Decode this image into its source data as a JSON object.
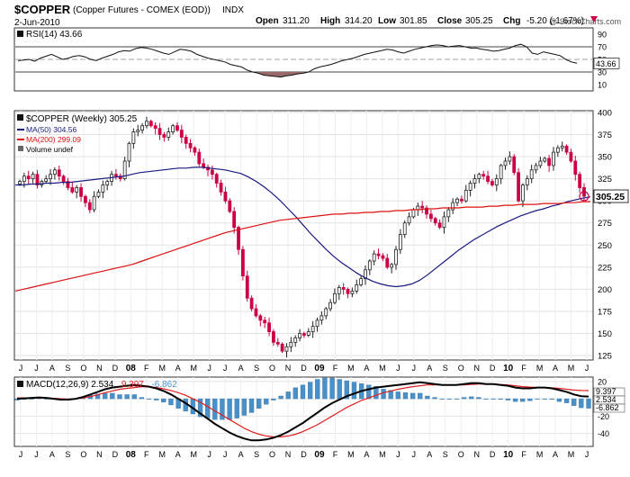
{
  "header": {
    "symbol": "$COPPER",
    "description": "(Copper Futures - COMEX (EOD))",
    "exchange": "INDX",
    "date": "2-Jun-2010",
    "copyright": "@ StockCharts.com",
    "open_label": "Open",
    "open": "311.20",
    "high_label": "High",
    "high": "314.20",
    "low_label": "Low",
    "low": "301.85",
    "close_label": "Close",
    "close": "305.25",
    "chg_label": "Chg",
    "chg": "-5.20 (-1.67%)",
    "chg_icon": "down-triangle-icon"
  },
  "colors": {
    "price_up": "#222222",
    "price_down": "#cc0044",
    "ma50": "#1a1a80",
    "ma200": "#dd1111",
    "macd_line": "#000000",
    "macd_signal": "#e02020",
    "histogram": "#4a90c8",
    "rsi_line": "#111111",
    "rsi_oversold_fill": "#9a6a6a",
    "close_marker": "#cc0044"
  },
  "chart_data": [
    {
      "type": "line",
      "panel": "rsi",
      "legend": "RSI(14) 43.66",
      "last_value": "43.66",
      "ylim": [
        0,
        100
      ],
      "ticks": [
        "90",
        "70",
        "50",
        "30",
        "10"
      ],
      "reference_lines": [
        70,
        30
      ],
      "values": [
        48,
        49,
        50,
        47,
        52,
        55,
        58,
        54,
        50,
        52,
        55,
        56,
        54,
        50,
        48,
        52,
        55,
        58,
        62,
        64,
        63,
        67,
        69,
        68,
        66,
        63,
        60,
        58,
        62,
        66,
        65,
        63,
        58,
        55,
        52,
        50,
        48,
        46,
        42,
        40,
        38,
        33,
        30,
        28,
        25,
        24,
        23,
        22,
        24,
        25,
        27,
        28,
        30,
        35,
        38,
        40,
        42,
        45,
        48,
        50,
        52,
        55,
        58,
        60,
        62,
        64,
        66,
        65,
        62,
        60,
        63,
        66,
        68,
        70,
        72,
        73,
        72,
        70,
        71,
        72,
        70,
        68,
        68,
        66,
        65,
        63,
        64,
        66,
        68,
        72,
        74,
        70,
        60,
        58,
        62,
        60,
        58,
        56,
        50,
        46,
        44
      ]
    },
    {
      "type": "candlestick",
      "panel": "price",
      "legend": "$COPPER (Weekly) 305.25",
      "x_labels": [
        "J",
        "J",
        "A",
        "S",
        "O",
        "N",
        "D",
        "08",
        "F",
        "M",
        "A",
        "M",
        "J",
        "J",
        "A",
        "S",
        "O",
        "N",
        "D",
        "09",
        "F",
        "M",
        "A",
        "M",
        "J",
        "J",
        "A",
        "S",
        "O",
        "N",
        "D",
        "10",
        "F",
        "M",
        "A",
        "M",
        "J"
      ],
      "ticks": [
        "400",
        "375",
        "350",
        "325",
        "300",
        "275",
        "250",
        "225",
        "200",
        "175",
        "150",
        "125"
      ],
      "ylim": [
        120,
        402
      ],
      "last_close": "305.25",
      "series": [
        {
          "name": "MA(50) 304.56",
          "values": [
            318,
            318,
            319,
            319,
            320,
            320,
            321,
            321,
            322,
            323,
            324,
            325,
            326,
            327,
            328,
            330,
            332,
            333,
            334,
            335,
            336,
            337,
            337,
            338,
            338,
            337,
            336,
            335,
            333,
            331,
            327,
            322,
            316,
            309,
            301,
            292,
            283,
            273,
            263,
            254,
            245,
            237,
            230,
            224,
            218,
            213,
            209,
            206,
            204,
            203,
            204,
            206,
            210,
            216,
            223,
            230,
            237,
            244,
            250,
            256,
            261,
            266,
            271,
            275,
            279,
            283,
            286,
            289,
            291,
            294,
            296,
            299,
            301,
            303,
            304.56
          ]
        },
        {
          "name": "MA(200) 299.09",
          "values": [
            198,
            200,
            202,
            204,
            206,
            208,
            210,
            212,
            214,
            216,
            218,
            220,
            222,
            224,
            226,
            228,
            231,
            234,
            237,
            240,
            243,
            246,
            249,
            252,
            255,
            258,
            261,
            264,
            266,
            268,
            270,
            272,
            274,
            276,
            278,
            279,
            280,
            281,
            282,
            283,
            284,
            285,
            285,
            286,
            286,
            287,
            287,
            288,
            288,
            289,
            289,
            290,
            290,
            291,
            291,
            292,
            292,
            292,
            293,
            293,
            293,
            294,
            294,
            295,
            295,
            296,
            296,
            296,
            297,
            297,
            297,
            298,
            298,
            299,
            299.09
          ]
        },
        {
          "name": "Volume undef",
          "values": []
        }
      ],
      "closes": [
        322,
        328,
        325,
        330,
        318,
        322,
        325,
        330,
        335,
        328,
        322,
        315,
        310,
        315,
        305,
        298,
        290,
        305,
        310,
        318,
        322,
        330,
        328,
        325,
        345,
        365,
        378,
        380,
        385,
        390,
        385,
        382,
        375,
        372,
        378,
        385,
        380,
        372,
        365,
        360,
        355,
        342,
        338,
        335,
        330,
        320,
        310,
        300,
        288,
        270,
        245,
        215,
        190,
        178,
        170,
        165,
        162,
        152,
        140,
        138,
        130,
        135,
        140,
        145,
        150,
        148,
        152,
        158,
        165,
        170,
        178,
        185,
        195,
        202,
        200,
        195,
        198,
        205,
        212,
        222,
        232,
        240,
        238,
        235,
        225,
        228,
        245,
        262,
        275,
        282,
        290,
        294,
        292,
        285,
        280,
        275,
        270,
        282,
        290,
        298,
        302,
        300,
        312,
        320,
        325,
        330,
        328,
        322,
        318,
        325,
        340,
        345,
        350,
        332,
        300,
        318,
        325,
        335,
        340,
        345,
        348,
        340,
        355,
        360,
        362,
        355,
        345,
        330,
        315,
        305.25
      ]
    },
    {
      "type": "line",
      "panel": "macd",
      "legend": "MACD(12,26,9) 2.534, 9.397, -6.862",
      "legend_macd": "MACD(12,26,9) 2.534,",
      "legend_signal": "9.397,",
      "legend_hist": "-6.862",
      "ticks": [
        "20",
        "0",
        "-20",
        "-40"
      ],
      "ylim": [
        -55,
        25
      ],
      "last_labels": [
        "9.397",
        "2.534",
        "-6.862"
      ],
      "series": [
        {
          "name": "MACD",
          "values": [
            0,
            0.5,
            1,
            1.5,
            1,
            0,
            -1,
            -1,
            0,
            2,
            5,
            8,
            11,
            13,
            14,
            15,
            16,
            15,
            14,
            12,
            9,
            5,
            0,
            -5,
            -11,
            -17,
            -23,
            -29,
            -34,
            -39,
            -43,
            -46,
            -48,
            -48,
            -47,
            -45,
            -42,
            -38,
            -33,
            -28,
            -22,
            -16,
            -10,
            -5,
            -1,
            3,
            6,
            9,
            11,
            13,
            14,
            15,
            16,
            17,
            18,
            19,
            18,
            17,
            16,
            16,
            16,
            17,
            18,
            18,
            17,
            17,
            16,
            15,
            13,
            12,
            12,
            13,
            13,
            12,
            10,
            8,
            5,
            3,
            2.534
          ]
        },
        {
          "name": "Signal",
          "values": [
            1,
            1,
            1,
            1,
            1,
            0.5,
            0,
            -0.5,
            0,
            1,
            2.5,
            4.5,
            7,
            9,
            11,
            12,
            13,
            14,
            14,
            13,
            11.5,
            9.5,
            7,
            4,
            0,
            -4,
            -9,
            -14,
            -19,
            -24,
            -29,
            -34,
            -38,
            -41,
            -43,
            -44,
            -44,
            -43,
            -41,
            -38,
            -34,
            -30,
            -25,
            -20,
            -15,
            -10,
            -6,
            -2,
            1,
            4,
            7,
            9,
            11,
            12.5,
            14,
            15,
            16,
            16,
            16,
            16,
            16,
            16,
            16.5,
            17,
            17,
            17,
            16.5,
            16,
            15,
            14,
            13.5,
            13,
            13,
            12.5,
            12,
            11,
            10,
            9.5,
            9.397
          ]
        }
      ]
    }
  ],
  "macd_x_labels": [
    "J",
    "J",
    "A",
    "S",
    "O",
    "N",
    "D",
    "08",
    "F",
    "M",
    "A",
    "M",
    "J",
    "J",
    "A",
    "S",
    "O",
    "N",
    "D",
    "09",
    "F",
    "M",
    "A",
    "M",
    "J",
    "J",
    "A",
    "S",
    "O",
    "N",
    "D",
    "10",
    "F",
    "M",
    "A",
    "M",
    "J"
  ]
}
